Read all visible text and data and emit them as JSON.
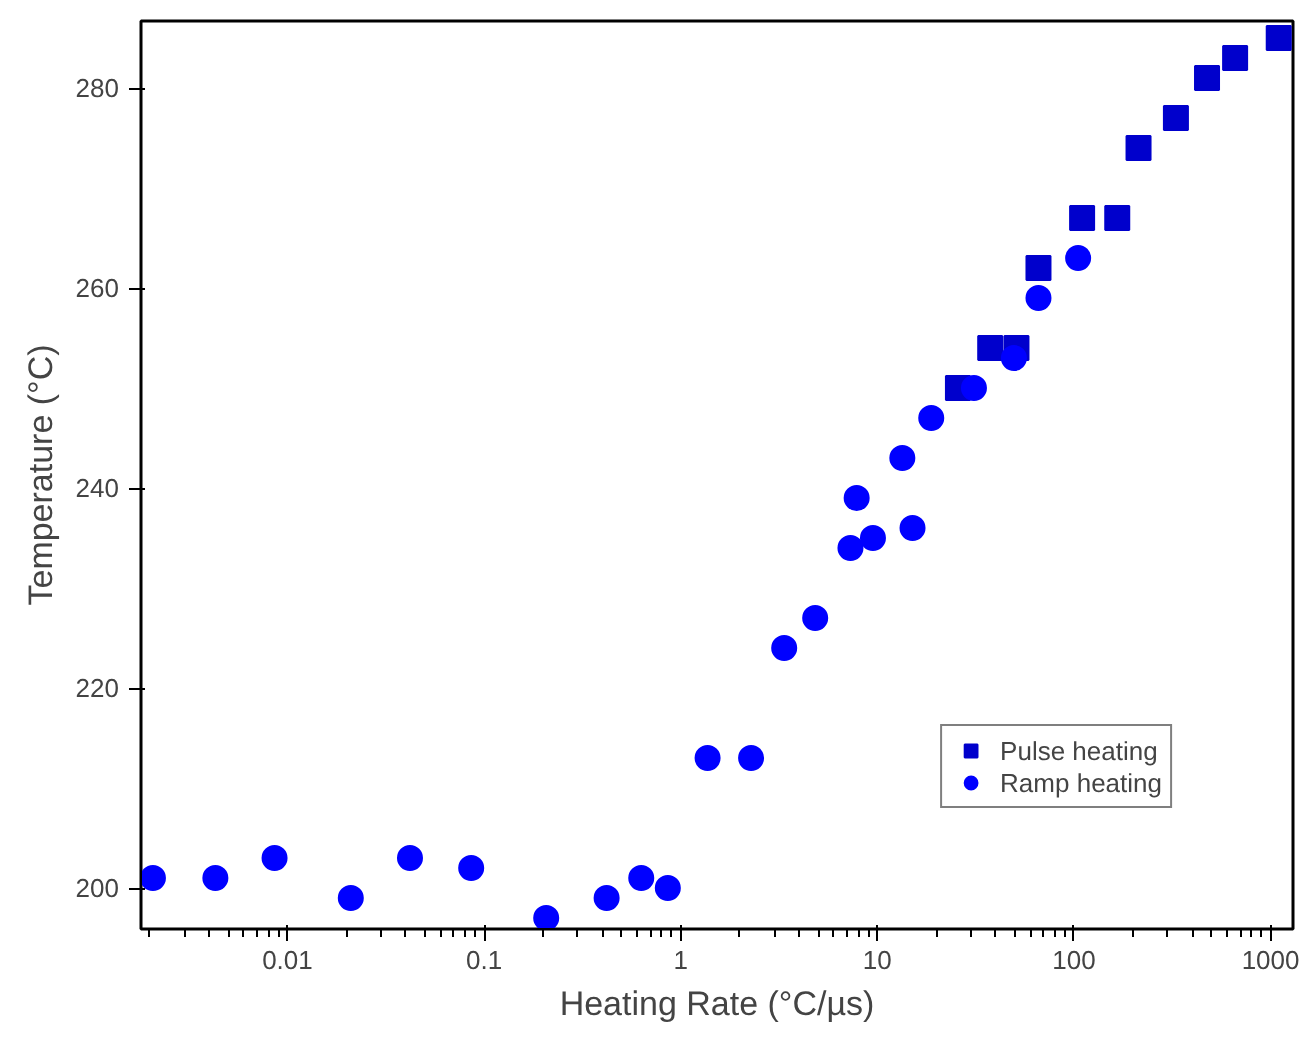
{
  "chart_data": {
    "type": "scatter",
    "xlabel": "Heating Rate (°C/µs)",
    "ylabel": "Temperature (°C)",
    "log": "x",
    "grid": false,
    "legend": "bottom right",
    "xlim": [
      0.0018,
      1300
    ],
    "ylim": [
      195.9,
      286.7
    ],
    "xticks": [
      {
        "value": 0.01,
        "label": "0.01"
      },
      {
        "value": 0.1,
        "label": "0.1"
      },
      1,
      10,
      100,
      1000
    ],
    "yticks": [
      200,
      220,
      240,
      260,
      280
    ],
    "series": [
      {
        "name": "Pulse heating",
        "color": "#0000cc",
        "marker": "square",
        "x": [
          25.7,
          37.5,
          51,
          66,
          110,
          166,
          213,
          330,
          475,
          660,
          1100
        ],
        "values": [
          250,
          254,
          254,
          262,
          267,
          267,
          274,
          277,
          281,
          283,
          285
        ]
      },
      {
        "name": "Ramp heating",
        "color": "#0000ff",
        "marker": "circle",
        "x": [
          0.00207,
          0.0043,
          0.0086,
          0.021,
          0.042,
          0.086,
          0.207,
          0.42,
          0.63,
          0.86,
          1.37,
          2.28,
          3.36,
          4.83,
          7.3,
          7.85,
          9.5,
          13.4,
          15.1,
          18.8,
          31,
          49.5,
          66,
          105
        ],
        "values": [
          201,
          201,
          203,
          199,
          203,
          202,
          197,
          199,
          201,
          200,
          213,
          213,
          224,
          227,
          234,
          239,
          235,
          243,
          236,
          247,
          250,
          253,
          259,
          263
        ]
      }
    ]
  }
}
